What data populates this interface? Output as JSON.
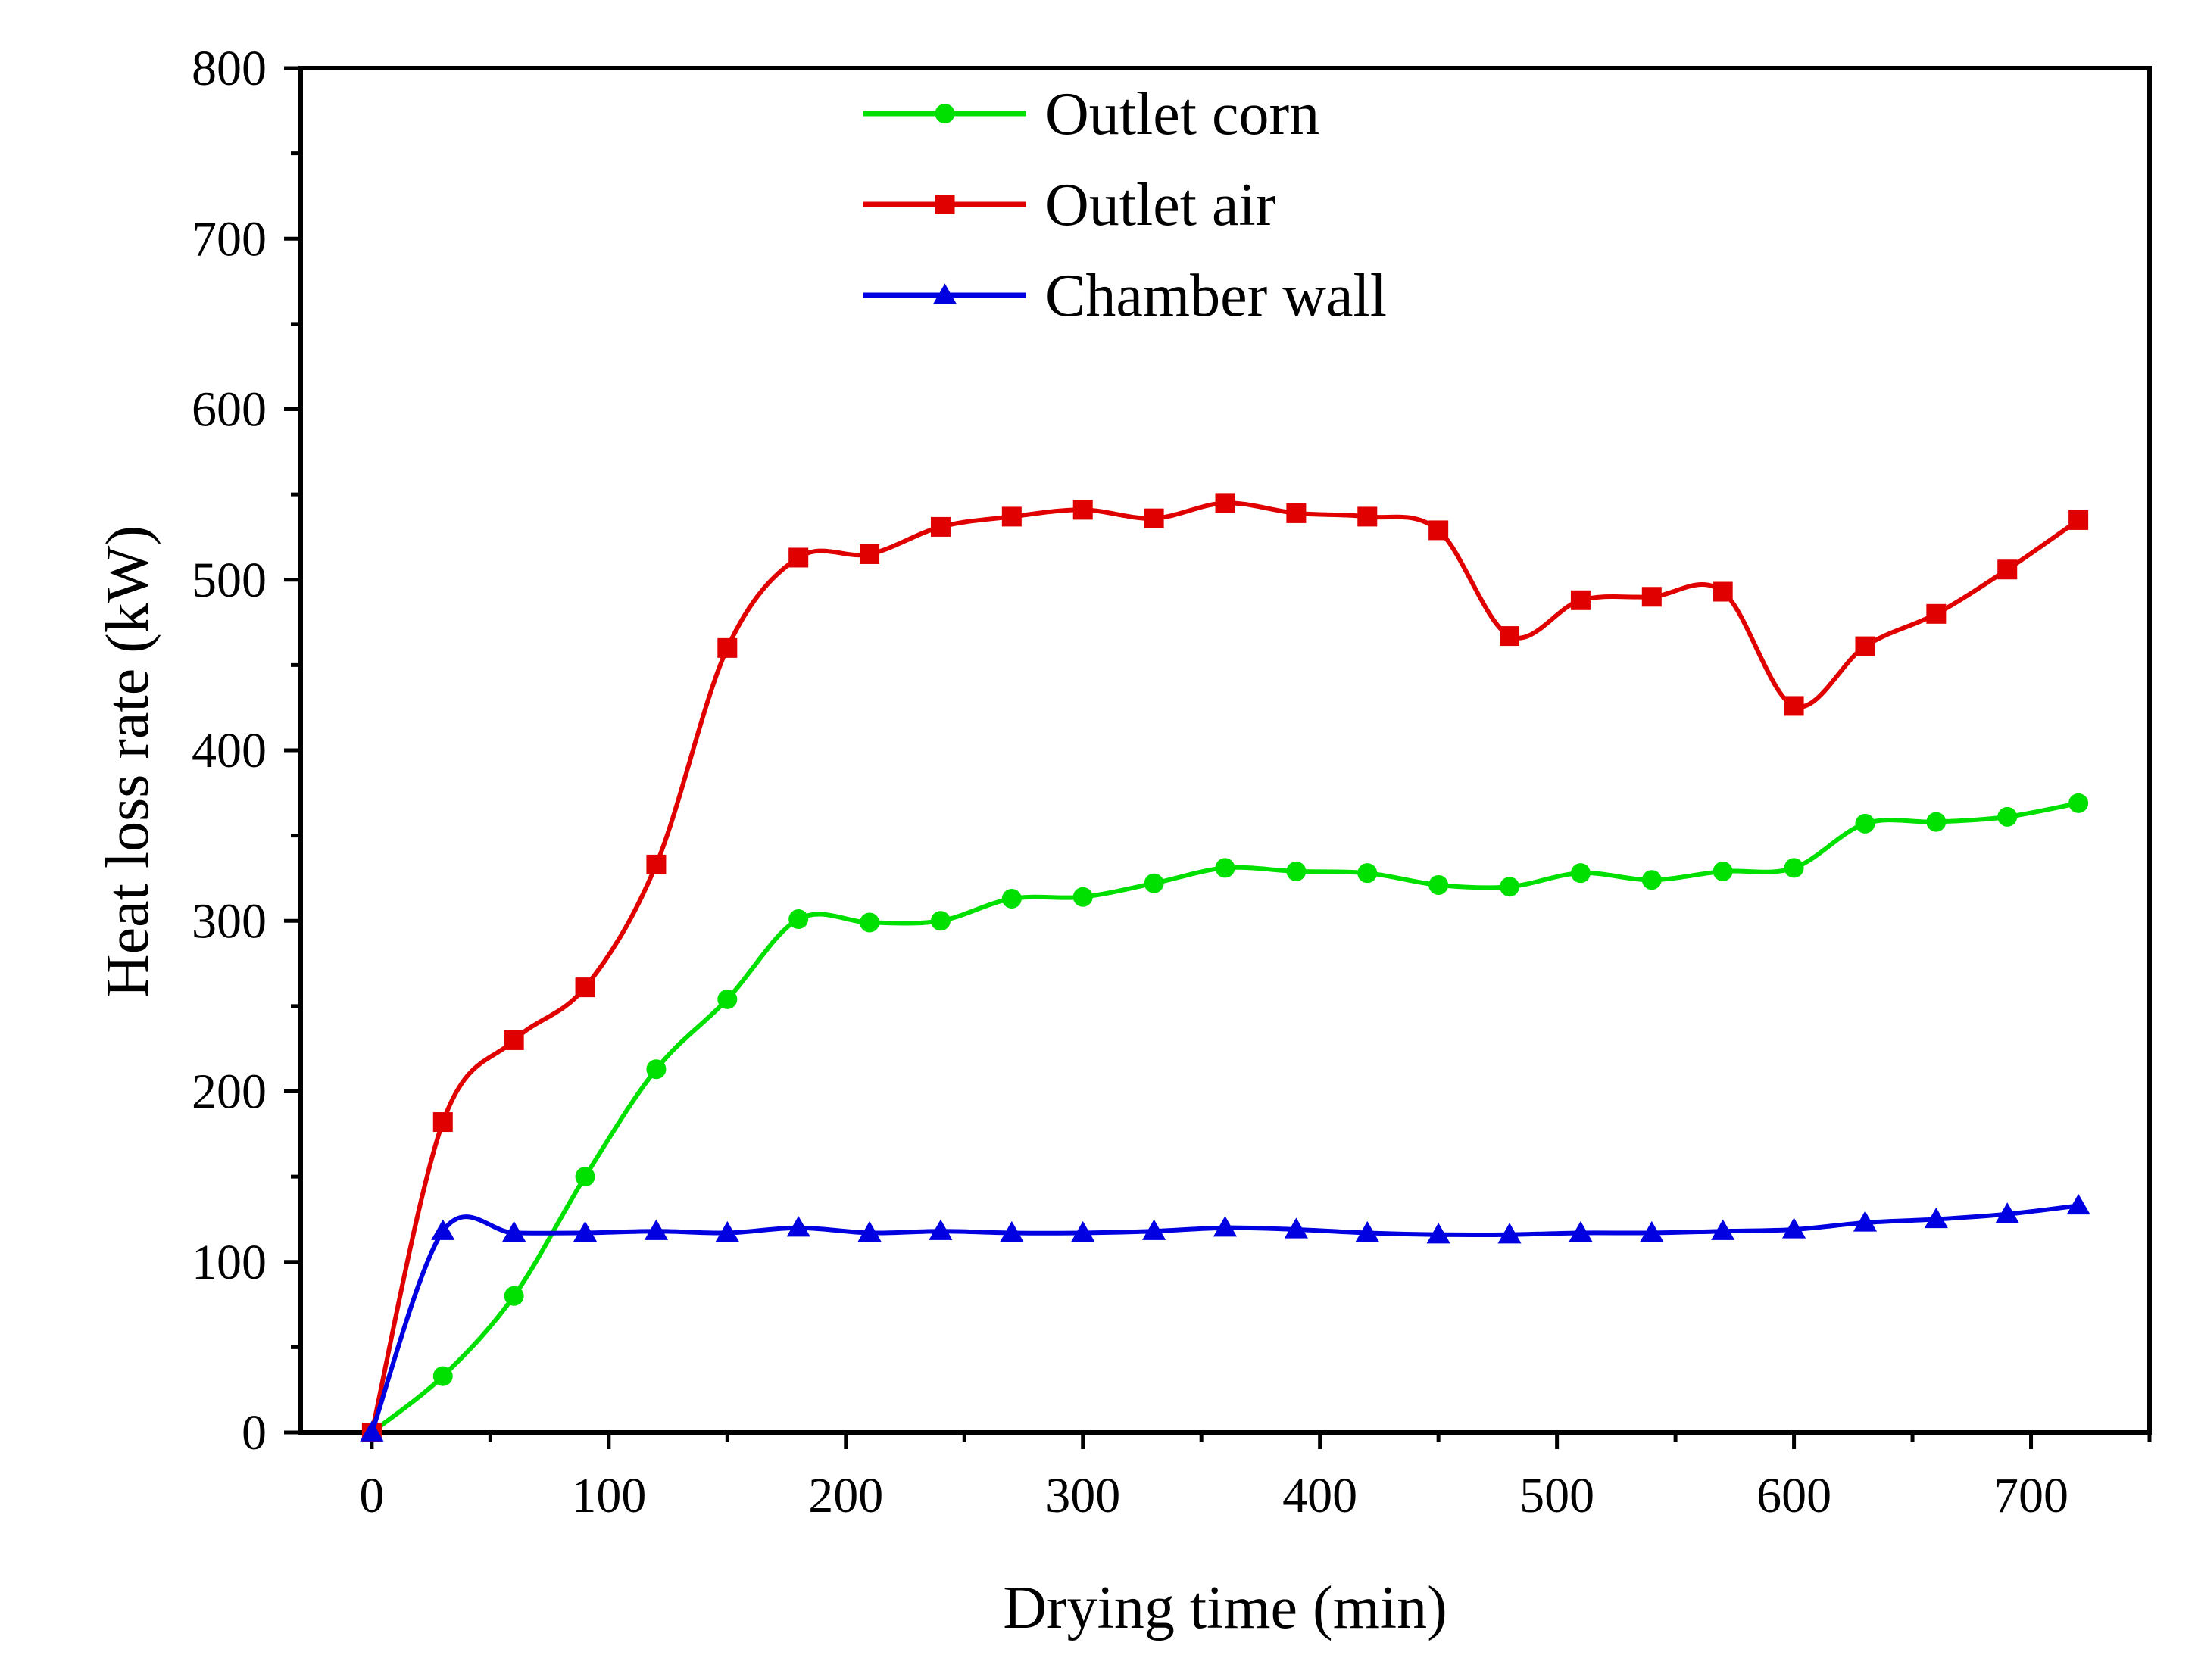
{
  "chart_data": {
    "type": "line",
    "title": "",
    "xlabel": "Drying time (min)",
    "ylabel": "Heat loss rate (kW)",
    "xlim": [
      -30,
      750
    ],
    "ylim": [
      0,
      800
    ],
    "xticks": [
      0,
      100,
      200,
      300,
      400,
      500,
      600,
      700
    ],
    "yticks": [
      0,
      100,
      200,
      300,
      400,
      500,
      600,
      700,
      800
    ],
    "grid": false,
    "legend_position": "top-center",
    "series": [
      {
        "name": "Outlet corn",
        "color": "#00e000",
        "marker": "circle",
        "x": [
          0,
          30,
          60,
          90,
          120,
          150,
          180,
          210,
          240,
          270,
          300,
          330,
          360,
          390,
          420,
          450,
          480,
          510,
          540,
          570,
          600,
          630,
          660,
          690,
          720
        ],
        "y": [
          0,
          33,
          80,
          150,
          213,
          254,
          301,
          299,
          300,
          313,
          314,
          322,
          331,
          329,
          328,
          321,
          320,
          328,
          324,
          329,
          331,
          357,
          358,
          361,
          369
        ]
      },
      {
        "name": "Outlet air",
        "color": "#e00000",
        "marker": "square",
        "x": [
          0,
          30,
          60,
          90,
          120,
          150,
          180,
          210,
          240,
          270,
          300,
          330,
          360,
          390,
          420,
          450,
          480,
          510,
          540,
          570,
          600,
          630,
          660,
          690,
          720
        ],
        "y": [
          0,
          182,
          230,
          261,
          333,
          460,
          513,
          515,
          531,
          537,
          541,
          536,
          545,
          539,
          537,
          529,
          467,
          488,
          490,
          493,
          426,
          461,
          480,
          506,
          535
        ]
      },
      {
        "name": "Chamber wall",
        "color": "#0000e0",
        "marker": "triangle",
        "x": [
          0,
          30,
          60,
          90,
          120,
          150,
          180,
          210,
          240,
          270,
          300,
          330,
          360,
          390,
          420,
          450,
          480,
          510,
          540,
          570,
          600,
          630,
          660,
          690,
          720
        ],
        "y": [
          0,
          118,
          117,
          117,
          118,
          117,
          120,
          117,
          118,
          117,
          117,
          118,
          120,
          119,
          117,
          116,
          116,
          117,
          117,
          118,
          119,
          123,
          125,
          128,
          133
        ]
      }
    ]
  }
}
